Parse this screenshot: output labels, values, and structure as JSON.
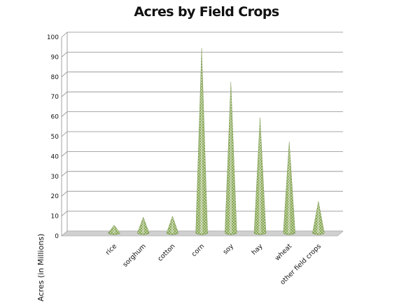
{
  "chart_data": {
    "type": "bar",
    "bar_shape": "cone",
    "title": "Acres by Field Crops",
    "xlabel": "",
    "ylabel": "Acres (in Millions)",
    "ylim": [
      0,
      100
    ],
    "yticks": [
      0,
      10,
      20,
      30,
      40,
      50,
      60,
      70,
      80,
      90,
      100
    ],
    "grid": true,
    "legend": "none",
    "categories": [
      "rice",
      "sorghum",
      "cotton",
      "corn",
      "soy",
      "hay",
      "wheat",
      "other field crops"
    ],
    "values": [
      3,
      7,
      7.5,
      92,
      75,
      57,
      45,
      15
    ],
    "bar_color": "#a9c47c",
    "bar_dark_color": "#6f8f45",
    "grid_color": "#8c8c8c",
    "floor_color": "#d0d0d0"
  }
}
